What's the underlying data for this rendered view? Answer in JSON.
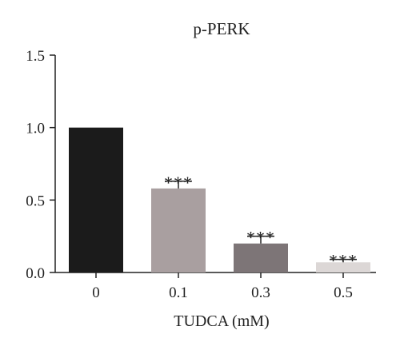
{
  "chart_data": {
    "type": "bar",
    "title": "p-PERK",
    "xlabel": "TUDCA (mM)",
    "ylabel": "",
    "categories": [
      "0",
      "0.1",
      "0.3",
      "0.5"
    ],
    "values": [
      1.0,
      0.58,
      0.2,
      0.07
    ],
    "errors": [
      0.0,
      0.05,
      0.05,
      0.02
    ],
    "annotations": [
      "",
      "***",
      "***",
      "***"
    ],
    "colors": [
      "#1b1b1b",
      "#a99fa0",
      "#7d7577",
      "#dcd7d6"
    ],
    "ylim": [
      0,
      1.5
    ],
    "yticks": [
      "0.0",
      "0.5",
      "1.0",
      "1.5"
    ],
    "grid": false,
    "legend": "none"
  }
}
